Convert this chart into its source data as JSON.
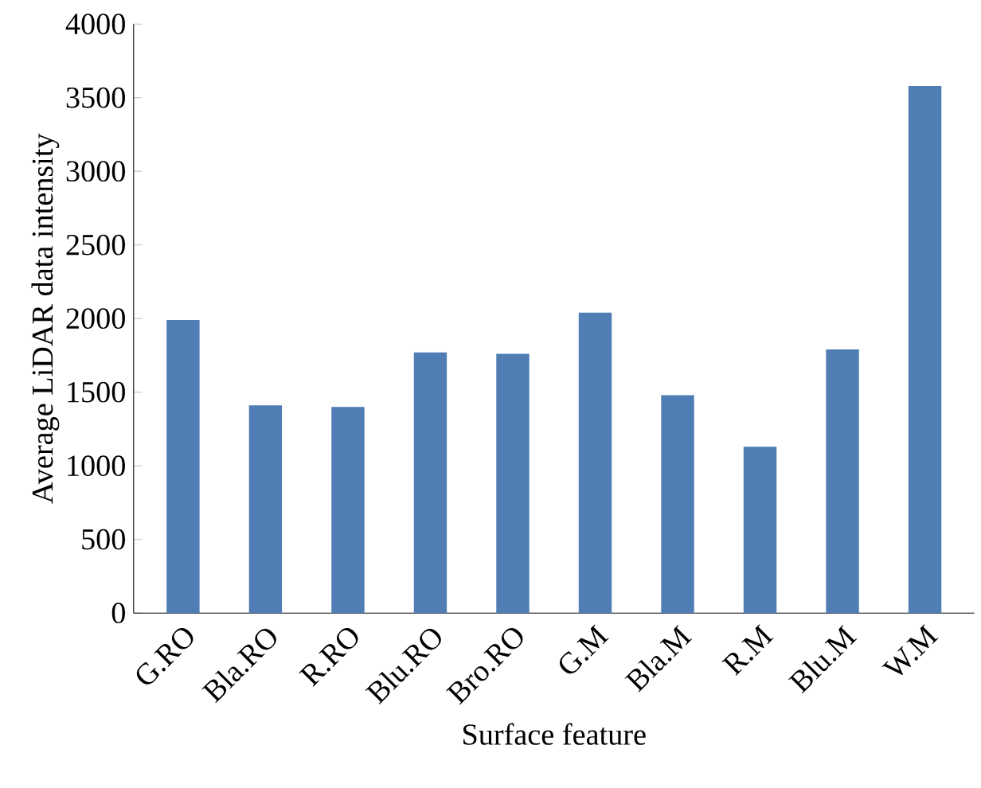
{
  "chart_data": {
    "type": "bar",
    "xlabel": "Surface feature",
    "ylabel": "Average LiDAR data intensity",
    "categories": [
      "G.RO",
      "Bla.RO",
      "R.RO",
      "Blu.RO",
      "Bro.RO",
      "G.M",
      "Bla.M",
      "R.M",
      "Blu.M",
      "W.M"
    ],
    "values": [
      1990,
      1410,
      1400,
      1770,
      1760,
      2040,
      1480,
      1130,
      1790,
      3580
    ],
    "color": "#4f7db4",
    "ylim": [
      0,
      4000
    ],
    "yticks": [
      0,
      500,
      1000,
      1500,
      2000,
      2500,
      3000,
      3500,
      4000
    ]
  }
}
